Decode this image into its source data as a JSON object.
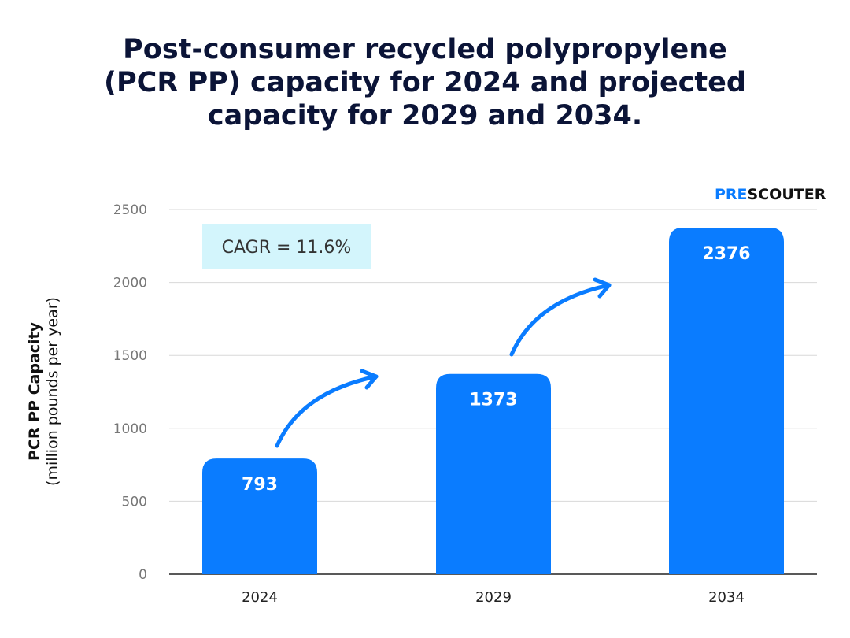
{
  "chart_data": {
    "type": "bar",
    "title_lines": [
      "Post-consumer recycled polypropylene",
      "(PCR PP) capacity for 2024 and projected",
      "capacity for 2029 and 2034."
    ],
    "categories": [
      "2024",
      "2029",
      "2034"
    ],
    "values": [
      793,
      1373,
      2376
    ],
    "ylabel": "PCR PP Capacity",
    "ylabel_unit": "(million pounds per year)",
    "ylim": [
      0,
      2500
    ],
    "yticks": [
      0,
      500,
      1000,
      1500,
      2000,
      2500
    ],
    "grid": true,
    "annotation": "CAGR = 11.6%",
    "bar_color": "#0a7cff",
    "annotation_bg": "#d3f5fc"
  },
  "logo": {
    "part1": "PRE",
    "part2": "SCOUTER"
  }
}
